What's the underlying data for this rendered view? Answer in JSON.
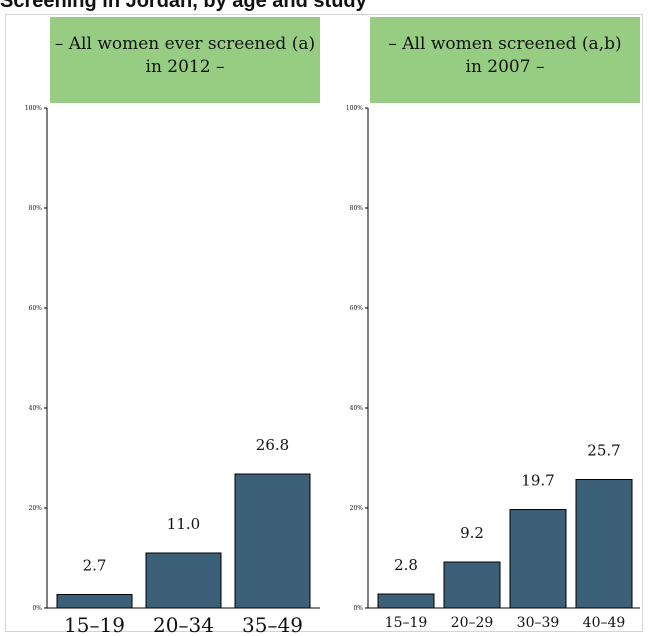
{
  "page": {
    "title": "Screening in Jordan, by age and study"
  },
  "colors": {
    "bar": "#3d6079",
    "header": "#97cd83",
    "axis": "#000000"
  },
  "chart_data": [
    {
      "type": "bar",
      "title_line1": "– All women ever screened (a)",
      "title_line2": "in 2012 –",
      "categories": [
        "15–19",
        "20–34",
        "35–49"
      ],
      "values": [
        2.7,
        11.0,
        26.8
      ],
      "value_labels": [
        "2.7",
        "11.0",
        "26.8"
      ],
      "ylim": [
        0,
        100
      ],
      "yticks": [
        "0%",
        "20%",
        "40%",
        "60%",
        "80%",
        "100%"
      ],
      "ytick_values": [
        0,
        20,
        40,
        60,
        80,
        100
      ],
      "grid": false
    },
    {
      "type": "bar",
      "title_line1": "– All women screened (a,b)",
      "title_line2": "in 2007 –",
      "categories": [
        "15–19",
        "20–29",
        "30–39",
        "40–49"
      ],
      "values": [
        2.8,
        9.2,
        19.7,
        25.7
      ],
      "value_labels": [
        "2.8",
        "9.2",
        "19.7",
        "25.7"
      ],
      "ylim": [
        0,
        100
      ],
      "yticks": [
        "0%",
        "20%",
        "40%",
        "60%",
        "80%",
        "100%"
      ],
      "ytick_values": [
        0,
        20,
        40,
        60,
        80,
        100
      ],
      "grid": false
    }
  ]
}
